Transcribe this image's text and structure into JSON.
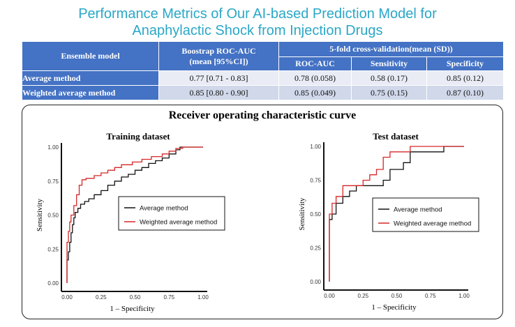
{
  "title_line1": "Performance Metrics of Our AI-based Prediction Model for",
  "title_line2": "Anaphylactic Shock from Injection Drugs",
  "table": {
    "h_model": "Ensemble model",
    "h_boot_1": "Boostrap ROC-AUC",
    "h_boot_2": "(mean [95%CI])",
    "h_cv": "5-fold cross-validation(mean (SD))",
    "h_roc": "ROC-AUC",
    "h_sens": "Sensitivity",
    "h_spec": "Specificity",
    "rows": [
      {
        "name": "Average method",
        "boot": "0.77 [0.71 - 0.83]",
        "roc": "0.78 (0.058)",
        "sens": "0.58 (0.17)",
        "spec": "0.85 (0.12)"
      },
      {
        "name": "Weighted average method",
        "boot": "0.85 [0.80 - 0.90]",
        "roc": "0.85 (0.049)",
        "sens": "0.75 (0.15)",
        "spec": "0.87 (0.10)"
      }
    ]
  },
  "panel_title": "Receiver operating characteristic curve",
  "colors": {
    "avg": "#111111",
    "weighted": "#d62728"
  },
  "chart_data": [
    {
      "type": "line",
      "title": "Training dataset",
      "xlabel": "1 – Specificity",
      "ylabel": "Sensitivity",
      "xlim": [
        0,
        1
      ],
      "ylim": [
        0,
        1
      ],
      "xticks": [
        "0.00",
        "0.25",
        "0.50",
        "0.75",
        "1.00"
      ],
      "yticks": [
        "0.00",
        "0.25",
        "0.50",
        "0.75",
        "1.00"
      ],
      "legend": "center-right",
      "series": [
        {
          "name": "Average method",
          "x": [
            0,
            0,
            0.01,
            0.01,
            0.02,
            0.02,
            0.03,
            0.03,
            0.04,
            0.04,
            0.05,
            0.05,
            0.06,
            0.06,
            0.08,
            0.08,
            0.1,
            0.1,
            0.13,
            0.13,
            0.16,
            0.16,
            0.2,
            0.2,
            0.25,
            0.25,
            0.3,
            0.3,
            0.35,
            0.35,
            0.4,
            0.4,
            0.45,
            0.45,
            0.5,
            0.5,
            0.55,
            0.55,
            0.6,
            0.6,
            0.65,
            0.65,
            0.7,
            0.7,
            0.75,
            0.75,
            0.8,
            0.8,
            0.83,
            0.83,
            1.0
          ],
          "y": [
            0,
            0.17,
            0.17,
            0.23,
            0.23,
            0.3,
            0.3,
            0.37,
            0.37,
            0.43,
            0.43,
            0.48,
            0.48,
            0.52,
            0.52,
            0.55,
            0.55,
            0.58,
            0.58,
            0.6,
            0.6,
            0.62,
            0.62,
            0.65,
            0.65,
            0.68,
            0.68,
            0.72,
            0.72,
            0.75,
            0.75,
            0.78,
            0.78,
            0.8,
            0.8,
            0.83,
            0.83,
            0.85,
            0.85,
            0.88,
            0.88,
            0.9,
            0.9,
            0.92,
            0.92,
            0.95,
            0.95,
            0.98,
            0.98,
            1.0,
            1.0
          ]
        },
        {
          "name": "Weighted average method",
          "x": [
            0,
            0,
            0.01,
            0.01,
            0.02,
            0.02,
            0.03,
            0.03,
            0.05,
            0.05,
            0.07,
            0.07,
            0.09,
            0.09,
            0.11,
            0.11,
            0.14,
            0.14,
            0.2,
            0.2,
            0.25,
            0.25,
            0.3,
            0.3,
            0.35,
            0.35,
            0.4,
            0.4,
            0.48,
            0.48,
            0.55,
            0.55,
            0.62,
            0.62,
            0.7,
            0.7,
            0.75,
            0.75,
            0.8,
            0.8,
            0.85,
            0.85,
            1.0
          ],
          "y": [
            0,
            0.3,
            0.3,
            0.38,
            0.38,
            0.45,
            0.45,
            0.5,
            0.5,
            0.57,
            0.57,
            0.65,
            0.65,
            0.72,
            0.72,
            0.76,
            0.76,
            0.77,
            0.77,
            0.79,
            0.79,
            0.81,
            0.81,
            0.83,
            0.83,
            0.85,
            0.85,
            0.87,
            0.87,
            0.89,
            0.89,
            0.91,
            0.91,
            0.93,
            0.93,
            0.95,
            0.95,
            0.97,
            0.97,
            0.99,
            0.99,
            1.0,
            1.0
          ]
        }
      ]
    },
    {
      "type": "line",
      "title": "Test dataset",
      "xlabel": "1 – Specificity",
      "ylabel": "Sensitivity",
      "xlim": [
        0,
        1
      ],
      "ylim": [
        0,
        1
      ],
      "xticks": [
        "0.00",
        "0.25",
        "0.50",
        "0.75",
        "1.00"
      ],
      "yticks": [
        "0.00",
        "0.25",
        "0.50",
        "0.75",
        "1.00"
      ],
      "legend": "center-right",
      "series": [
        {
          "name": "Average method",
          "x": [
            0,
            0,
            0.02,
            0.02,
            0.05,
            0.05,
            0.1,
            0.1,
            0.15,
            0.15,
            0.2,
            0.2,
            0.3,
            0.3,
            0.4,
            0.4,
            0.45,
            0.45,
            0.5,
            0.5,
            0.55,
            0.55,
            0.6,
            0.6,
            0.85,
            0.85,
            1.0
          ],
          "y": [
            0,
            0.46,
            0.46,
            0.5,
            0.5,
            0.58,
            0.58,
            0.63,
            0.63,
            0.67,
            0.67,
            0.71,
            0.71,
            0.71,
            0.71,
            0.75,
            0.75,
            0.83,
            0.83,
            0.83,
            0.83,
            0.88,
            0.88,
            0.96,
            0.96,
            1.0,
            1.0
          ]
        },
        {
          "name": "Weighted average method",
          "x": [
            0,
            0,
            0.02,
            0.02,
            0.05,
            0.05,
            0.1,
            0.1,
            0.25,
            0.25,
            0.3,
            0.3,
            0.35,
            0.35,
            0.4,
            0.4,
            0.45,
            0.45,
            0.6,
            0.6,
            1.0
          ],
          "y": [
            0,
            0.5,
            0.5,
            0.58,
            0.58,
            0.63,
            0.63,
            0.71,
            0.71,
            0.75,
            0.75,
            0.79,
            0.79,
            0.83,
            0.83,
            0.92,
            0.92,
            0.96,
            0.96,
            1.0,
            1.0
          ]
        }
      ]
    }
  ]
}
